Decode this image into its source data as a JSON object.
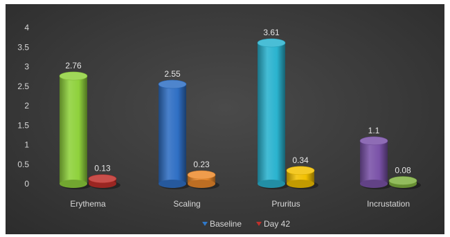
{
  "chart_data": {
    "type": "bar",
    "categories": [
      "Erythema",
      "Scaling",
      "Pruritus",
      "Incrustation"
    ],
    "series": [
      {
        "name": "Baseline",
        "values": [
          2.76,
          2.55,
          3.61,
          1.1
        ]
      },
      {
        "name": "Day 42",
        "values": [
          0.13,
          0.23,
          0.34,
          0.08
        ]
      }
    ],
    "bar_colors": {
      "Baseline": [
        "#8fd13c",
        "#2f6fc4",
        "#2ab3cf",
        "#7a52a8"
      ],
      "Day 42": [
        "#c0302b",
        "#ec8a2c",
        "#f2c000",
        "#7fb040"
      ]
    },
    "legend_colors": [
      "#2f78c8",
      "#c0302b"
    ],
    "yticks": [
      "0",
      "0.5",
      "1",
      "1.5",
      "2",
      "2.5",
      "3",
      "3.5",
      "4"
    ],
    "ylim": [
      0,
      4
    ],
    "legend_position": "bottom",
    "grid": false,
    "title": "",
    "xlabel": "",
    "ylabel": ""
  }
}
